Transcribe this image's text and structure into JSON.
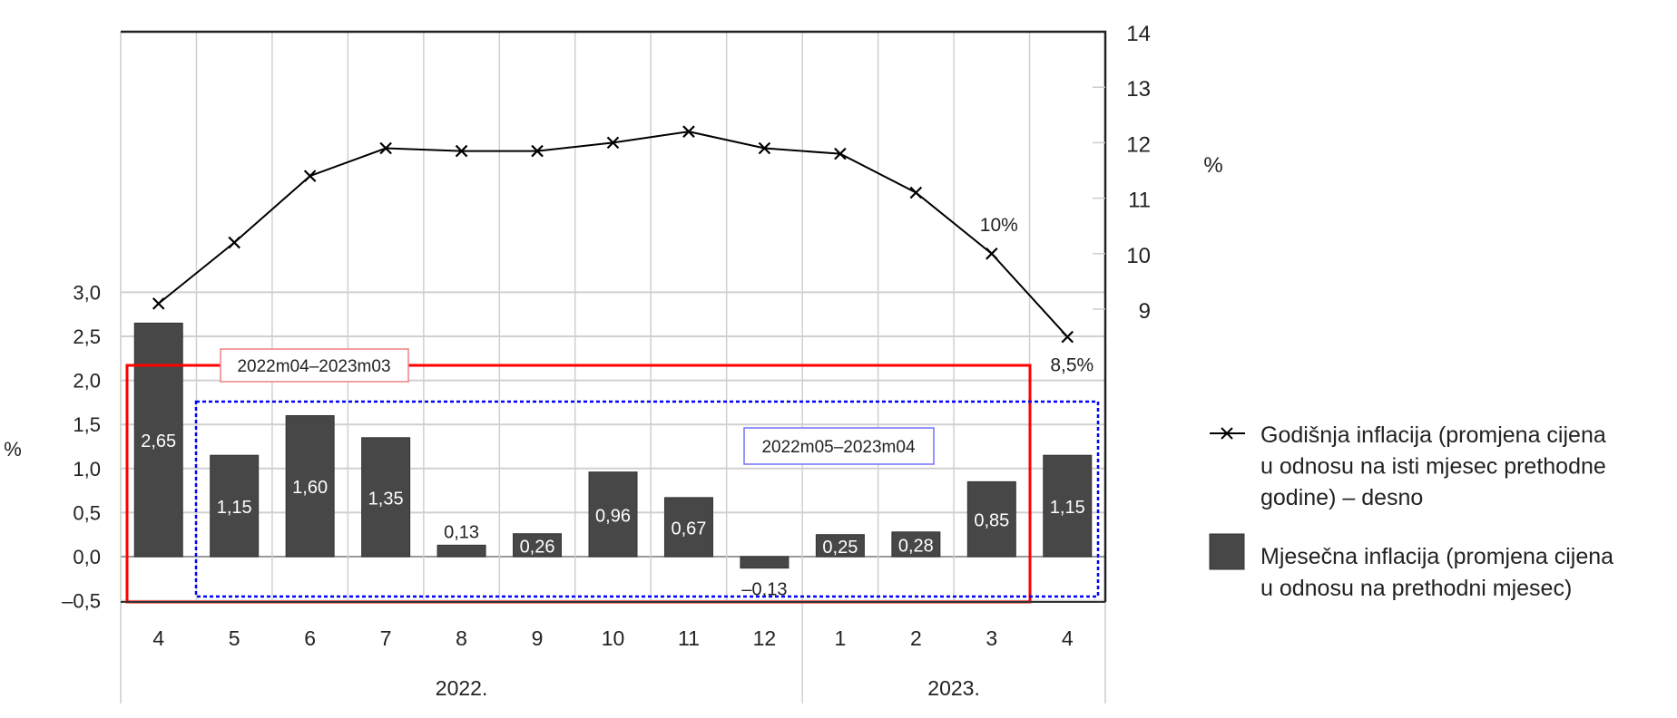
{
  "chart_data": {
    "type": "bar+line",
    "categories": [
      "4",
      "5",
      "6",
      "7",
      "8",
      "9",
      "10",
      "11",
      "12",
      "1",
      "2",
      "3",
      "4"
    ],
    "year_groups": [
      {
        "label": "2022.",
        "span": 9
      },
      {
        "label": "2023.",
        "span": 4
      }
    ],
    "series": [
      {
        "name": "Mjesečna inflacija (promjena cijena u odnosu na prethodni mjesec)",
        "type": "bar",
        "axis": "left",
        "color": "#474747",
        "values": [
          2.65,
          1.15,
          1.6,
          1.35,
          0.13,
          0.26,
          0.96,
          0.67,
          -0.13,
          0.25,
          0.28,
          0.85,
          1.15
        ],
        "data_labels": [
          "2,65",
          "1,15",
          "1,60",
          "1,35",
          "0,13",
          "0,26",
          "0,96",
          "0,67",
          "–0,13",
          "0,25",
          "0,28",
          "0,85",
          "1,15"
        ]
      },
      {
        "name": "Godišnja inflacija (promjena cijena u odnosu na isti mjesec prethodne godine) – desno",
        "type": "line",
        "axis": "right",
        "color": "#000000",
        "marker": "x",
        "values": [
          9.1,
          10.2,
          11.4,
          11.9,
          11.85,
          11.85,
          12.0,
          12.2,
          11.9,
          11.8,
          11.1,
          10.0,
          8.5
        ]
      }
    ],
    "left_axis": {
      "label": "%",
      "ylim": [
        -0.5,
        3.0
      ],
      "ticks": [
        "–0,5",
        "0,0",
        "0,5",
        "1,0",
        "1,5",
        "2,0",
        "2,5",
        "3,0"
      ]
    },
    "right_axis": {
      "label": "%",
      "ylim": [
        8.2,
        14
      ],
      "ticks": [
        "9",
        "10",
        "11",
        "12",
        "13",
        "14"
      ]
    },
    "annotations": [
      {
        "text": "10%",
        "category_index": 11
      },
      {
        "text": "8,5%",
        "category_index": 12
      }
    ],
    "highlight_boxes": [
      {
        "label": "2022m04–2023m03",
        "color": "#ff0000",
        "style": "solid"
      },
      {
        "label": "2022m05–2023m04",
        "color": "#0000ff",
        "style": "dotted"
      }
    ],
    "legend": {
      "position": "right",
      "items": [
        {
          "lines": [
            "Godišnja inflacija (promjena cijena",
            "u odnosu na isti mjesec prethodne",
            "godine) – desno"
          ],
          "symbol": "line-x"
        },
        {
          "lines": [
            "Mjesečna inflacija (promjena cijena",
            "u odnosu na prethodni mjesec)"
          ],
          "symbol": "bar"
        }
      ]
    },
    "grid": true
  }
}
